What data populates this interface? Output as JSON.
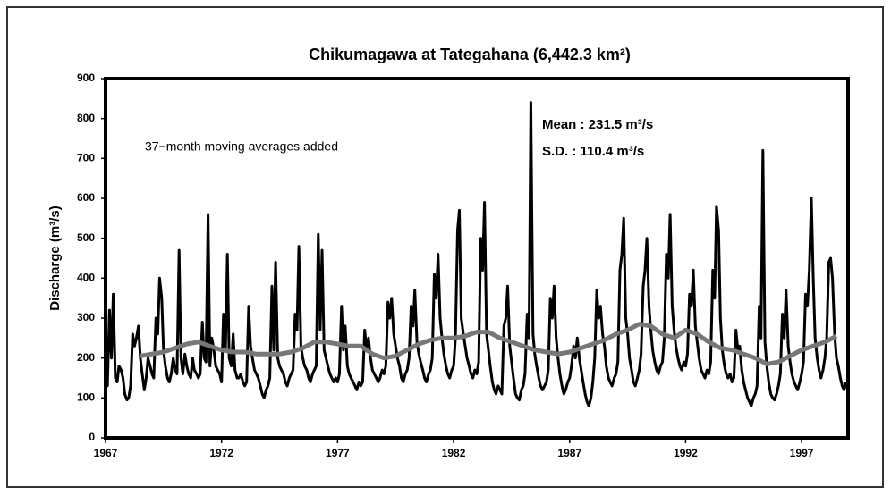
{
  "chart_data": {
    "type": "line",
    "title": "Chikumagawa at Tategahana (6,442.3 km²)",
    "ylabel": "Discharge (m³/s)",
    "annotations": [
      "37−month moving averages added",
      "Mean :  231.5 m³/s",
      "S.D.   :  110.4 m³/s"
    ],
    "xlim": [
      1967,
      1999
    ],
    "xticks": [
      1967,
      1972,
      1977,
      1982,
      1987,
      1992,
      1997
    ],
    "ylim": [
      0,
      900
    ],
    "yticks": [
      0,
      100,
      200,
      300,
      400,
      500,
      600,
      700,
      800,
      900
    ],
    "series": [
      {
        "color": "#000000",
        "x": [
          1967,
          1967.08,
          1967.17,
          1967.25,
          1967.33,
          1967.42,
          1967.5,
          1967.58,
          1967.67,
          1967.75,
          1967.83,
          1967.92,
          1968,
          1968.08,
          1968.17,
          1968.25,
          1968.33,
          1968.42,
          1968.5,
          1968.58,
          1968.67,
          1968.75,
          1968.83,
          1968.92,
          1969,
          1969.08,
          1969.17,
          1969.25,
          1969.33,
          1969.42,
          1969.5,
          1969.58,
          1969.67,
          1969.75,
          1969.83,
          1969.92,
          1970,
          1970.08,
          1970.17,
          1970.25,
          1970.33,
          1970.42,
          1970.5,
          1970.58,
          1970.67,
          1970.75,
          1970.83,
          1970.92,
          1971,
          1971.08,
          1971.17,
          1971.25,
          1971.33,
          1971.42,
          1971.5,
          1971.58,
          1971.67,
          1971.75,
          1971.83,
          1971.92,
          1972,
          1972.08,
          1972.17,
          1972.25,
          1972.33,
          1972.42,
          1972.5,
          1972.58,
          1972.67,
          1972.75,
          1972.83,
          1972.92,
          1973,
          1973.08,
          1973.17,
          1973.25,
          1973.33,
          1973.42,
          1973.5,
          1973.58,
          1973.67,
          1973.75,
          1973.83,
          1973.92,
          1974,
          1974.08,
          1974.17,
          1974.25,
          1974.33,
          1974.42,
          1974.5,
          1974.58,
          1974.67,
          1974.75,
          1974.83,
          1974.92,
          1975,
          1975.08,
          1975.17,
          1975.25,
          1975.33,
          1975.42,
          1975.5,
          1975.58,
          1975.67,
          1975.75,
          1975.83,
          1975.92,
          1976,
          1976.08,
          1976.17,
          1976.25,
          1976.33,
          1976.42,
          1976.5,
          1976.58,
          1976.67,
          1976.75,
          1976.83,
          1976.92,
          1977,
          1977.08,
          1977.17,
          1977.25,
          1977.33,
          1977.42,
          1977.5,
          1977.58,
          1977.67,
          1977.75,
          1977.83,
          1977.92,
          1978,
          1978.08,
          1978.17,
          1978.25,
          1978.33,
          1978.42,
          1978.5,
          1978.58,
          1978.67,
          1978.75,
          1978.83,
          1978.92,
          1979,
          1979.08,
          1979.17,
          1979.25,
          1979.33,
          1979.42,
          1979.5,
          1979.58,
          1979.67,
          1979.75,
          1979.83,
          1979.92,
          1980,
          1980.08,
          1980.17,
          1980.25,
          1980.33,
          1980.42,
          1980.5,
          1980.58,
          1980.67,
          1980.75,
          1980.83,
          1980.92,
          1981,
          1981.08,
          1981.17,
          1981.25,
          1981.33,
          1981.42,
          1981.5,
          1981.58,
          1981.67,
          1981.75,
          1981.83,
          1981.92,
          1982,
          1982.08,
          1982.17,
          1982.25,
          1982.33,
          1982.42,
          1982.5,
          1982.58,
          1982.67,
          1982.75,
          1982.83,
          1982.92,
          1983,
          1983.08,
          1983.17,
          1983.25,
          1983.33,
          1983.42,
          1983.5,
          1983.58,
          1983.67,
          1983.75,
          1983.83,
          1983.92,
          1984,
          1984.08,
          1984.17,
          1984.25,
          1984.33,
          1984.42,
          1984.5,
          1984.58,
          1984.67,
          1984.75,
          1984.83,
          1984.92,
          1985,
          1985.08,
          1985.17,
          1985.25,
          1985.33,
          1985.42,
          1985.5,
          1985.58,
          1985.67,
          1985.75,
          1985.83,
          1985.92,
          1986,
          1986.08,
          1986.17,
          1986.25,
          1986.33,
          1986.42,
          1986.5,
          1986.58,
          1986.67,
          1986.75,
          1986.83,
          1986.92,
          1987,
          1987.08,
          1987.17,
          1987.25,
          1987.33,
          1987.42,
          1987.5,
          1987.58,
          1987.67,
          1987.75,
          1987.83,
          1987.92,
          1988,
          1988.08,
          1988.17,
          1988.25,
          1988.33,
          1988.42,
          1988.5,
          1988.58,
          1988.67,
          1988.75,
          1988.83,
          1988.92,
          1989,
          1989.08,
          1989.17,
          1989.25,
          1989.33,
          1989.42,
          1989.5,
          1989.58,
          1989.67,
          1989.75,
          1989.83,
          1989.92,
          1990,
          1990.08,
          1990.17,
          1990.25,
          1990.33,
          1990.42,
          1990.5,
          1990.58,
          1990.67,
          1990.75,
          1990.83,
          1990.92,
          1991,
          1991.08,
          1991.17,
          1991.25,
          1991.33,
          1991.42,
          1991.5,
          1991.58,
          1991.67,
          1991.75,
          1991.83,
          1991.92,
          1992,
          1992.08,
          1992.17,
          1992.25,
          1992.33,
          1992.42,
          1992.5,
          1992.58,
          1992.67,
          1992.75,
          1992.83,
          1992.92,
          1993,
          1993.08,
          1993.17,
          1993.25,
          1993.33,
          1993.42,
          1993.5,
          1993.58,
          1993.67,
          1993.75,
          1993.83,
          1993.92,
          1994,
          1994.08,
          1994.17,
          1994.25,
          1994.33,
          1994.42,
          1994.5,
          1994.58,
          1994.67,
          1994.75,
          1994.83,
          1994.92,
          1995,
          1995.08,
          1995.17,
          1995.25,
          1995.33,
          1995.42,
          1995.5,
          1995.58,
          1995.67,
          1995.75,
          1995.83,
          1995.92,
          1996,
          1996.08,
          1996.17,
          1996.25,
          1996.33,
          1996.42,
          1996.5,
          1996.58,
          1996.67,
          1996.75,
          1996.83,
          1996.92,
          1997,
          1997.08,
          1997.17,
          1997.25,
          1997.33,
          1997.42,
          1997.5,
          1997.58,
          1997.67,
          1997.75,
          1997.83,
          1997.92,
          1998,
          1998.08,
          1998.17,
          1998.25,
          1998.33,
          1998.42,
          1998.5,
          1998.58,
          1998.67,
          1998.75,
          1998.83,
          1998.92
        ],
        "values": [
          150,
          130,
          320,
          200,
          360,
          150,
          140,
          180,
          170,
          150,
          110,
          95,
          100,
          130,
          260,
          230,
          250,
          280,
          200,
          160,
          120,
          150,
          200,
          180,
          160,
          150,
          300,
          260,
          400,
          350,
          220,
          180,
          150,
          140,
          160,
          200,
          170,
          160,
          470,
          200,
          160,
          210,
          180,
          160,
          150,
          200,
          170,
          160,
          150,
          160,
          290,
          200,
          190,
          560,
          180,
          250,
          220,
          180,
          170,
          160,
          140,
          310,
          220,
          460,
          200,
          180,
          260,
          170,
          150,
          150,
          160,
          140,
          130,
          140,
          330,
          230,
          200,
          170,
          160,
          150,
          130,
          110,
          100,
          120,
          130,
          150,
          380,
          220,
          440,
          200,
          180,
          170,
          160,
          140,
          130,
          150,
          160,
          170,
          310,
          270,
          480,
          230,
          200,
          180,
          170,
          150,
          140,
          160,
          170,
          180,
          510,
          270,
          470,
          220,
          200,
          180,
          160,
          150,
          140,
          150,
          140,
          160,
          330,
          220,
          280,
          180,
          160,
          150,
          140,
          130,
          120,
          140,
          130,
          140,
          270,
          220,
          250,
          200,
          170,
          160,
          150,
          140,
          150,
          170,
          160,
          180,
          340,
          300,
          350,
          260,
          230,
          200,
          180,
          150,
          140,
          160,
          170,
          200,
          330,
          280,
          370,
          240,
          210,
          190,
          170,
          150,
          140,
          160,
          170,
          200,
          410,
          350,
          460,
          300,
          250,
          210,
          180,
          160,
          150,
          170,
          180,
          250,
          520,
          570,
          300,
          260,
          230,
          200,
          180,
          160,
          150,
          170,
          160,
          190,
          500,
          420,
          590,
          260,
          220,
          180,
          140,
          120,
          110,
          130,
          120,
          110,
          280,
          300,
          380,
          230,
          190,
          150,
          110,
          100,
          95,
          120,
          130,
          160,
          310,
          250,
          840,
          260,
          210,
          180,
          150,
          130,
          120,
          130,
          140,
          170,
          350,
          300,
          380,
          250,
          200,
          160,
          130,
          110,
          120,
          140,
          150,
          180,
          230,
          200,
          250,
          200,
          170,
          140,
          110,
          90,
          80,
          100,
          140,
          200,
          370,
          300,
          330,
          260,
          230,
          180,
          150,
          140,
          130,
          150,
          160,
          190,
          420,
          460,
          550,
          300,
          260,
          200,
          170,
          140,
          130,
          150,
          170,
          210,
          380,
          420,
          500,
          330,
          270,
          220,
          190,
          170,
          160,
          180,
          190,
          250,
          460,
          400,
          560,
          330,
          270,
          230,
          200,
          180,
          170,
          190,
          180,
          210,
          360,
          330,
          420,
          280,
          240,
          200,
          170,
          160,
          150,
          170,
          160,
          190,
          420,
          350,
          580,
          520,
          300,
          220,
          180,
          160,
          150,
          160,
          140,
          150,
          270,
          220,
          230,
          170,
          140,
          120,
          100,
          90,
          80,
          100,
          110,
          130,
          330,
          250,
          720,
          240,
          180,
          140,
          110,
          100,
          95,
          110,
          130,
          160,
          310,
          250,
          370,
          230,
          190,
          160,
          140,
          130,
          120,
          140,
          160,
          190,
          360,
          330,
          420,
          600,
          400,
          250,
          200,
          170,
          150,
          170,
          200,
          250,
          440,
          450,
          400,
          260,
          200,
          180,
          150,
          130,
          120,
          140
        ]
      },
      {
        "color": "#777777",
        "x": [
          1968.5,
          1969,
          1969.5,
          1970,
          1970.5,
          1971,
          1971.5,
          1972,
          1972.5,
          1973,
          1973.5,
          1974,
          1974.5,
          1975,
          1975.5,
          1976,
          1976.5,
          1977,
          1977.5,
          1978,
          1978.5,
          1979,
          1979.5,
          1980,
          1980.5,
          1981,
          1981.5,
          1982,
          1982.5,
          1983,
          1983.5,
          1984,
          1984.5,
          1985,
          1985.5,
          1986,
          1986.5,
          1987,
          1987.5,
          1988,
          1988.5,
          1989,
          1989.5,
          1990,
          1990.5,
          1991,
          1991.5,
          1992,
          1992.5,
          1993,
          1993.5,
          1994,
          1994.5,
          1995,
          1995.5,
          1996,
          1996.5,
          1997,
          1997.5,
          1998,
          1998.5
        ],
        "values": [
          205,
          210,
          215,
          225,
          235,
          240,
          230,
          220,
          215,
          215,
          210,
          210,
          210,
          215,
          225,
          240,
          240,
          235,
          230,
          230,
          210,
          200,
          205,
          220,
          235,
          245,
          250,
          250,
          255,
          265,
          265,
          250,
          240,
          230,
          220,
          215,
          210,
          215,
          225,
          235,
          245,
          260,
          270,
          285,
          280,
          260,
          250,
          270,
          260,
          240,
          225,
          220,
          210,
          200,
          185,
          190,
          205,
          220,
          230,
          240,
          255
        ]
      }
    ]
  }
}
